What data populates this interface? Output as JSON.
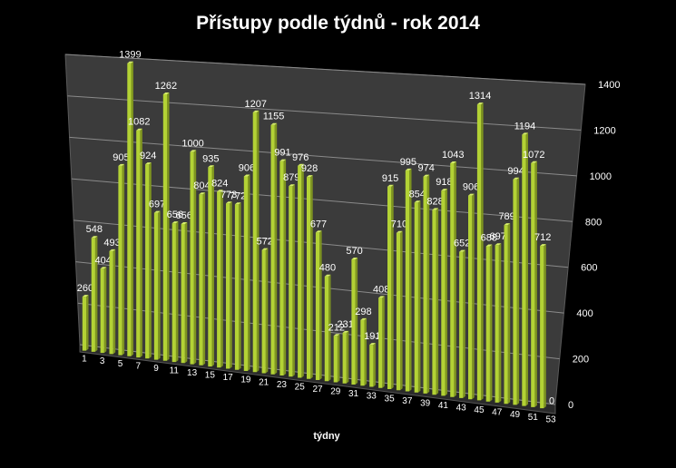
{
  "chart_data": {
    "type": "bar",
    "title": "Přístupy podle týdnů - rok 2014",
    "xlabel": "týdny",
    "ylabel": "",
    "ylim": [
      0,
      1400
    ],
    "yticks": [
      0,
      200,
      400,
      600,
      800,
      1000,
      1200,
      1400
    ],
    "categories": [
      "1",
      "2",
      "3",
      "4",
      "5",
      "6",
      "7",
      "8",
      "9",
      "10",
      "11",
      "12",
      "13",
      "14",
      "15",
      "16",
      "17",
      "18",
      "19",
      "20",
      "21",
      "22",
      "23",
      "24",
      "25",
      "26",
      "27",
      "28",
      "29",
      "30",
      "31",
      "32",
      "33",
      "34",
      "35",
      "36",
      "37",
      "38",
      "39",
      "40",
      "41",
      "42",
      "43",
      "44",
      "45",
      "46",
      "47",
      "48",
      "49",
      "50",
      "51",
      "52",
      "53"
    ],
    "xtick_labels": [
      "1",
      "3",
      "5",
      "7",
      "9",
      "11",
      "13",
      "15",
      "17",
      "19",
      "21",
      "23",
      "25",
      "27",
      "29",
      "31",
      "33",
      "35",
      "37",
      "39",
      "41",
      "43",
      "45",
      "47",
      "49",
      "51",
      "53"
    ],
    "values": [
      260,
      548,
      404,
      493,
      905,
      1399,
      1082,
      924,
      697,
      1262,
      656,
      656,
      1000,
      804,
      935,
      824,
      773,
      772,
      906,
      1207,
      572,
      1155,
      991,
      879,
      976,
      928,
      677,
      480,
      212,
      231,
      570,
      298,
      191,
      408,
      915,
      710,
      995,
      854,
      974,
      828,
      918,
      1043,
      652,
      906,
      1314,
      688,
      697,
      789,
      994,
      1194,
      1072,
      712,
      0
    ],
    "data_labels": [
      "260",
      "548",
      "404",
      "493",
      "905",
      "1399",
      "1082",
      "924",
      "697",
      "1262",
      "656",
      "656",
      "1000",
      "804",
      "935",
      "824",
      "773",
      "772",
      "906",
      "1207",
      "572",
      "1155",
      "991",
      "879",
      "976",
      "928",
      "677",
      "480",
      "212",
      "231",
      "570",
      "298",
      "191",
      "408",
      "915",
      "710",
      "995",
      "854",
      "974",
      "828",
      "918",
      "1043",
      "652",
      "906",
      "1314",
      "688",
      "697",
      "789",
      "994",
      "1194",
      "1072",
      "712",
      "0"
    ],
    "grid": true,
    "colors": {
      "bar": "#b3d235",
      "background": "#000000",
      "wall": "#3a3a3a",
      "grid": "#8a8a8a",
      "text": "#ffffff"
    }
  }
}
